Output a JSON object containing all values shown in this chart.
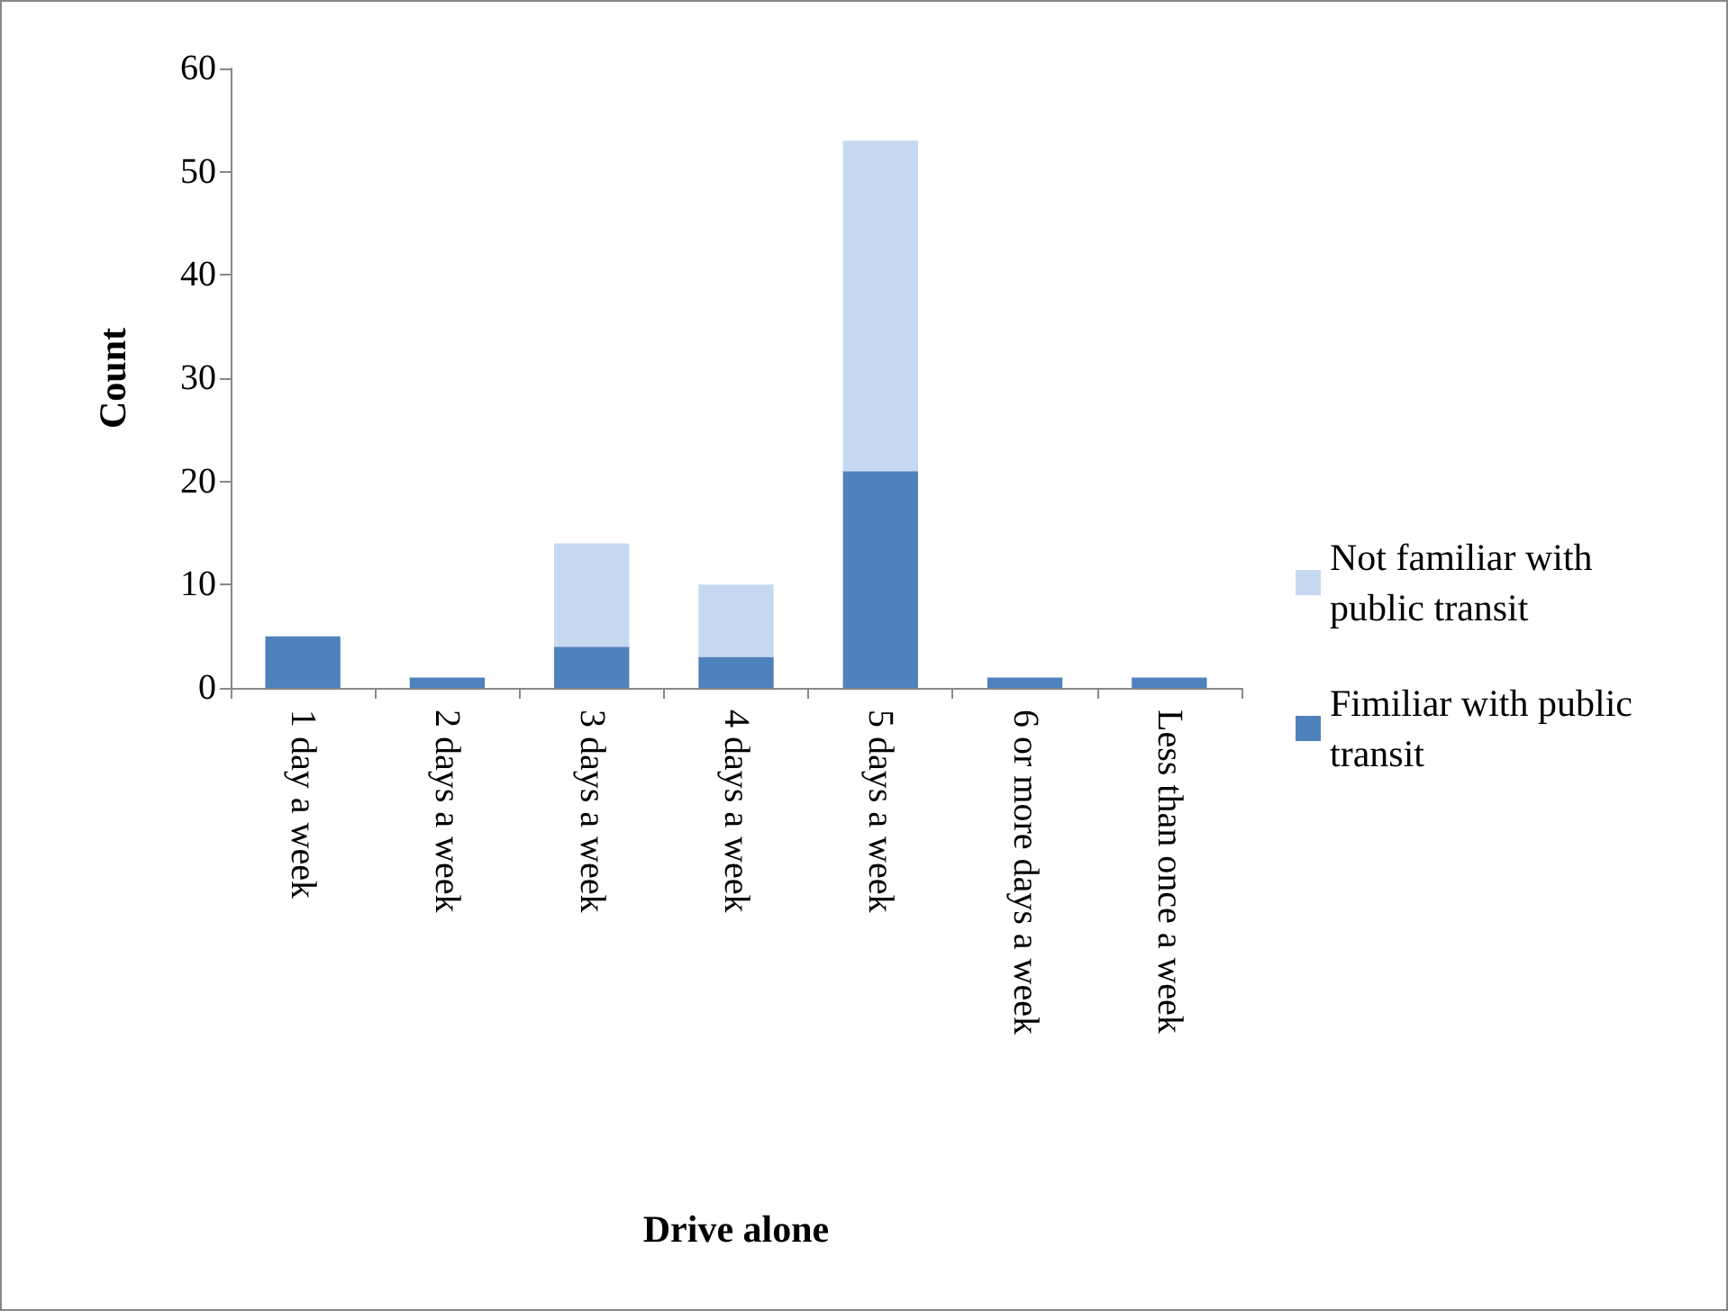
{
  "chart_data": {
    "type": "bar",
    "stacked": true,
    "xlabel": "Drive alone",
    "ylabel": "Count",
    "categories": [
      "1 day a week",
      "2 days a week",
      "3 days a week",
      "4 days a week",
      "5 days a week",
      "6 or more days a week",
      "Less than once a week"
    ],
    "series": [
      {
        "name": "Fimiliar with public transit",
        "color": "#4f81bd",
        "values": [
          5,
          1,
          4,
          3,
          21,
          1,
          1
        ]
      },
      {
        "name": "Not familiar with public transit",
        "color": "#c6d9f1",
        "values": [
          0,
          0,
          10,
          7,
          32,
          0,
          0
        ]
      }
    ],
    "ylim": [
      0,
      60
    ],
    "yticks": [
      0,
      10,
      20,
      30,
      40,
      50,
      60
    ],
    "grid": false,
    "legend": "right"
  }
}
